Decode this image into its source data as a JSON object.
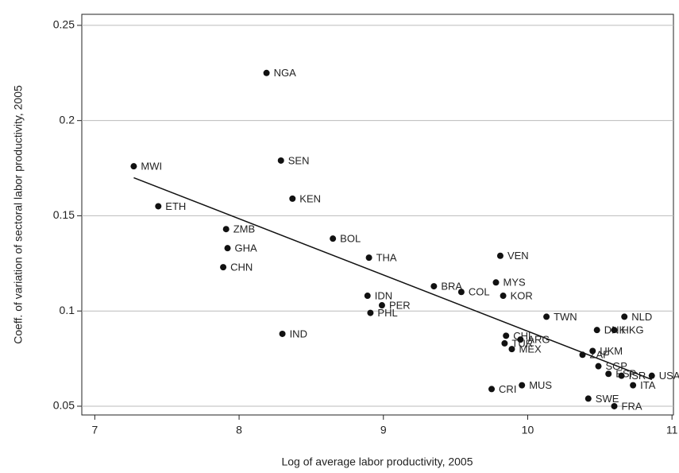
{
  "chart_data": {
    "type": "scatter",
    "xlabel": "Log of average labor productivity, 2005",
    "ylabel": "Coeff. of variation of sectoral labor productivity, 2005",
    "labels": [
      "NGA",
      "MWI",
      "SEN",
      "KEN",
      "ETH",
      "ZMB",
      "BOL",
      "GHA",
      "CHN",
      "THA",
      "VEN",
      "IDN",
      "PER",
      "PHL",
      "BRA",
      "COL",
      "MYS",
      "KOR",
      "IND",
      "TWN",
      "NLD",
      "DNK",
      "HKG",
      "CHL",
      "ARG",
      "TUR",
      "MEX",
      "ZAF",
      "UKM",
      "SGP",
      "USA",
      "ESP",
      "ISR",
      "ITA",
      "MUS",
      "CRI",
      "SWE",
      "FRA"
    ],
    "x": [
      8.19,
      7.27,
      8.29,
      8.37,
      7.44,
      7.91,
      8.65,
      7.92,
      7.89,
      8.9,
      9.81,
      8.89,
      8.99,
      8.91,
      9.35,
      9.54,
      9.78,
      9.83,
      8.3,
      10.13,
      10.67,
      10.48,
      10.6,
      9.85,
      9.95,
      9.84,
      9.89,
      10.38,
      10.45,
      10.49,
      10.86,
      10.56,
      10.65,
      10.73,
      9.96,
      9.75,
      10.42,
      10.6
    ],
    "y": [
      0.225,
      0.176,
      0.179,
      0.159,
      0.155,
      0.143,
      0.138,
      0.133,
      0.123,
      0.128,
      0.129,
      0.108,
      0.103,
      0.099,
      0.113,
      0.11,
      0.115,
      0.108,
      0.088,
      0.097,
      0.097,
      0.09,
      0.09,
      0.087,
      0.085,
      0.083,
      0.08,
      0.077,
      0.079,
      0.071,
      0.066,
      0.067,
      0.066,
      0.061,
      0.061,
      0.059,
      0.054,
      0.05
    ],
    "color": "#111111",
    "fit_line": {
      "x": [
        7.27,
        10.86
      ],
      "y": [
        0.17,
        0.064
      ]
    },
    "xlim": [
      6.91,
      11.01
    ],
    "ylim": [
      0.0454,
      0.2558
    ],
    "xticks": [
      7,
      8,
      9,
      10,
      11
    ],
    "yticks": [
      0.05,
      0.1,
      0.15,
      0.2,
      0.25
    ],
    "grid": true
  }
}
